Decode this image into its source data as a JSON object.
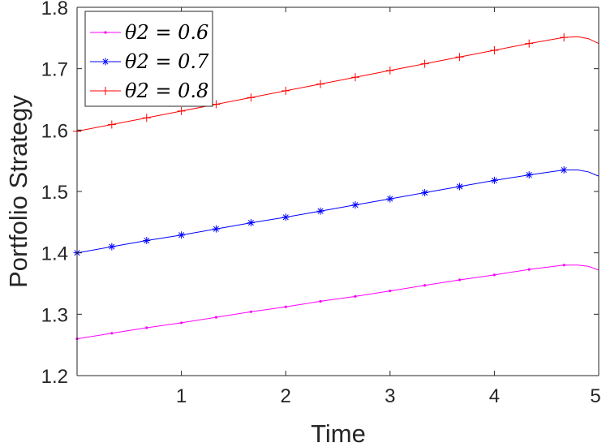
{
  "chart_data": {
    "type": "line",
    "xlabel": "Time",
    "ylabel": "Portfolio Strategy",
    "xlim": [
      0,
      5
    ],
    "ylim": [
      1.2,
      1.8
    ],
    "xticks": [
      "1",
      "2",
      "3",
      "4",
      "5"
    ],
    "yticks": [
      "1.2",
      "1.3",
      "1.4",
      "1.5",
      "1.6",
      "1.7",
      "1.8"
    ],
    "grid": false,
    "legend_position": "top-left",
    "series": [
      {
        "name": "θ2 = 0.6",
        "color": "#ff00ff",
        "marker": "point",
        "x": [
          0,
          0.333,
          0.667,
          1.0,
          1.333,
          1.667,
          2.0,
          2.333,
          2.667,
          3.0,
          3.333,
          3.667,
          4.0,
          4.333,
          4.667,
          4.8,
          4.9,
          5.0
        ],
        "y": [
          1.26,
          1.269,
          1.278,
          1.286,
          1.295,
          1.304,
          1.312,
          1.321,
          1.329,
          1.338,
          1.347,
          1.356,
          1.364,
          1.373,
          1.38,
          1.38,
          1.378,
          1.372
        ]
      },
      {
        "name": "θ2 = 0.7",
        "color": "#0000ff",
        "marker": "asterisk",
        "x": [
          0,
          0.333,
          0.667,
          1.0,
          1.333,
          1.667,
          2.0,
          2.333,
          2.667,
          3.0,
          3.333,
          3.667,
          4.0,
          4.333,
          4.667,
          4.8,
          4.9,
          5.0
        ],
        "y": [
          1.4,
          1.41,
          1.42,
          1.429,
          1.439,
          1.449,
          1.458,
          1.468,
          1.478,
          1.488,
          1.498,
          1.508,
          1.518,
          1.527,
          1.535,
          1.535,
          1.532,
          1.525
        ]
      },
      {
        "name": "θ2 = 0.8",
        "color": "#ff0000",
        "marker": "plus",
        "x": [
          0,
          0.333,
          0.667,
          1.0,
          1.333,
          1.667,
          2.0,
          2.333,
          2.667,
          3.0,
          3.333,
          3.667,
          4.0,
          4.333,
          4.667,
          4.8,
          4.9,
          5.0
        ],
        "y": [
          1.598,
          1.609,
          1.62,
          1.631,
          1.642,
          1.653,
          1.664,
          1.675,
          1.686,
          1.697,
          1.708,
          1.719,
          1.73,
          1.741,
          1.751,
          1.752,
          1.749,
          1.741
        ]
      }
    ]
  }
}
